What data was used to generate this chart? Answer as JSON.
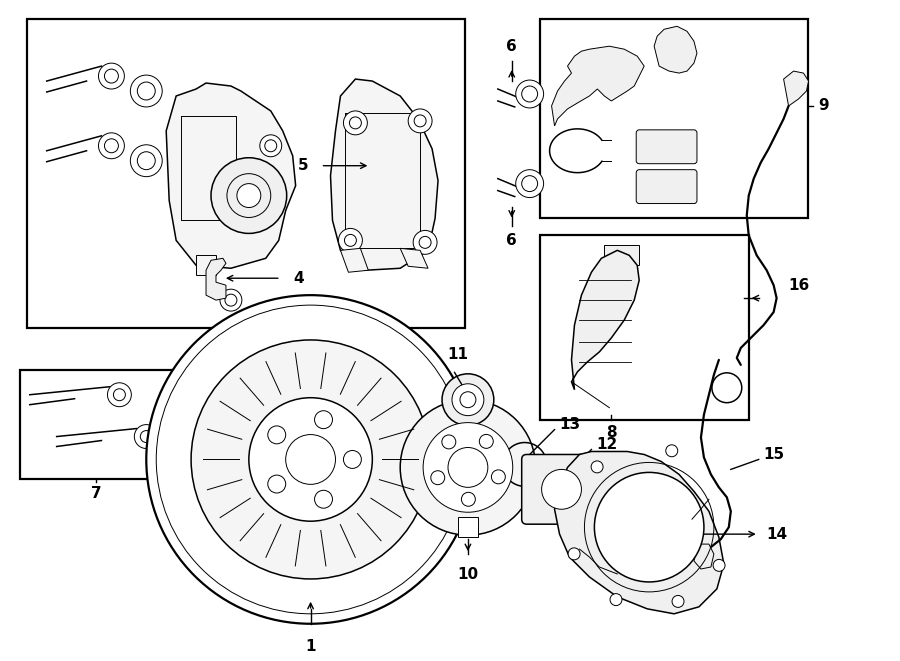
{
  "bg_color": "#ffffff",
  "line_color": "#000000",
  "fig_width": 9.0,
  "fig_height": 6.61,
  "dpi": 100,
  "lw_thin": 0.7,
  "lw_med": 1.1,
  "lw_thick": 1.6
}
